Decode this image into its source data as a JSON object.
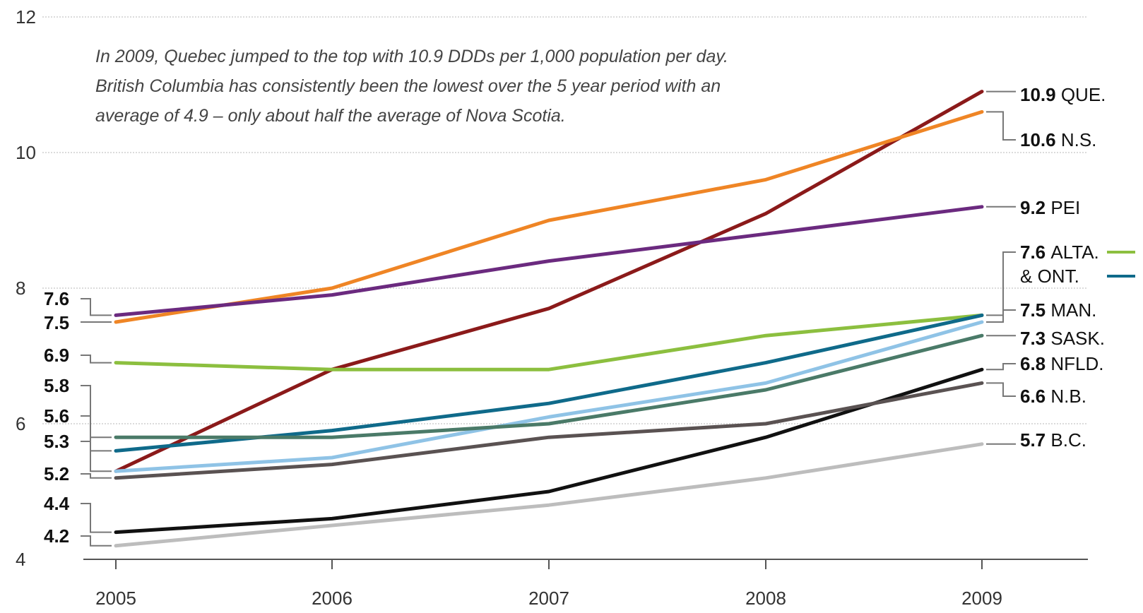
{
  "chart_data": {
    "type": "line",
    "title": "",
    "xlabel": "",
    "ylabel": "",
    "x": [
      "2005",
      "2006",
      "2007",
      "2008",
      "2009"
    ],
    "ylim": [
      4,
      12
    ],
    "yticks": [
      "4",
      "6",
      "8",
      "10",
      "12"
    ],
    "grid": true,
    "annotation_lines": [
      "In 2009, Quebec jumped to the top with 10.9 DDDs per 1,000 population per day.",
      "British Columbia has consistently been the lowest over the 5 year period with an",
      "average of 4.9 – only about half the average of Nova Scotia."
    ],
    "series": [
      {
        "name": "QUE.",
        "color": "#8b1a1a",
        "values": [
          5.3,
          6.8,
          7.7,
          9.1,
          10.9
        ],
        "start_label": "5.3",
        "end_label": "10.9",
        "end_name": "QUE."
      },
      {
        "name": "N.S.",
        "color": "#ef8525",
        "values": [
          7.5,
          8.0,
          9.0,
          9.6,
          10.6
        ],
        "start_label": "7.5",
        "end_label": "10.6",
        "end_name": "N.S."
      },
      {
        "name": "PEI",
        "color": "#6b2a7f",
        "values": [
          7.6,
          7.9,
          8.4,
          8.8,
          9.2
        ],
        "start_label": "7.6",
        "end_label": "9.2",
        "end_name": "PEI"
      },
      {
        "name": "ALTA.",
        "color": "#8cbf3f",
        "values": [
          6.9,
          6.8,
          6.8,
          7.3,
          7.6
        ],
        "start_label": "6.9",
        "end_label": "7.6",
        "end_name": "ALTA."
      },
      {
        "name": "ONT.",
        "color": "#0f6a8a",
        "values": [
          5.6,
          5.9,
          6.3,
          6.9,
          7.6
        ],
        "start_label": "5.6",
        "end_label": "",
        "end_name": "& ONT."
      },
      {
        "name": "MAN.",
        "color": "#8fc3e6",
        "values": [
          5.3,
          5.5,
          6.1,
          6.6,
          7.5
        ],
        "start_label": "",
        "end_label": "7.5",
        "end_name": "MAN."
      },
      {
        "name": "SASK.",
        "color": "#4a7a68",
        "values": [
          5.8,
          5.8,
          6.0,
          6.5,
          7.3
        ],
        "start_label": "5.8",
        "end_label": "7.3",
        "end_name": "SASK."
      },
      {
        "name": "NFLD.",
        "color": "#111111",
        "values": [
          4.4,
          4.6,
          5.0,
          5.8,
          6.8
        ],
        "start_label": "4.4",
        "end_label": "6.8",
        "end_name": "NFLD."
      },
      {
        "name": "N.B.",
        "color": "#5a5252",
        "values": [
          5.2,
          5.4,
          5.8,
          6.0,
          6.6
        ],
        "start_label": "5.2",
        "end_label": "6.6",
        "end_name": "N.B."
      },
      {
        "name": "B.C.",
        "color": "#bdbdbd",
        "values": [
          4.2,
          4.5,
          4.8,
          5.2,
          5.7
        ],
        "start_label": "4.2",
        "end_label": "5.7",
        "end_name": "B.C."
      }
    ]
  }
}
